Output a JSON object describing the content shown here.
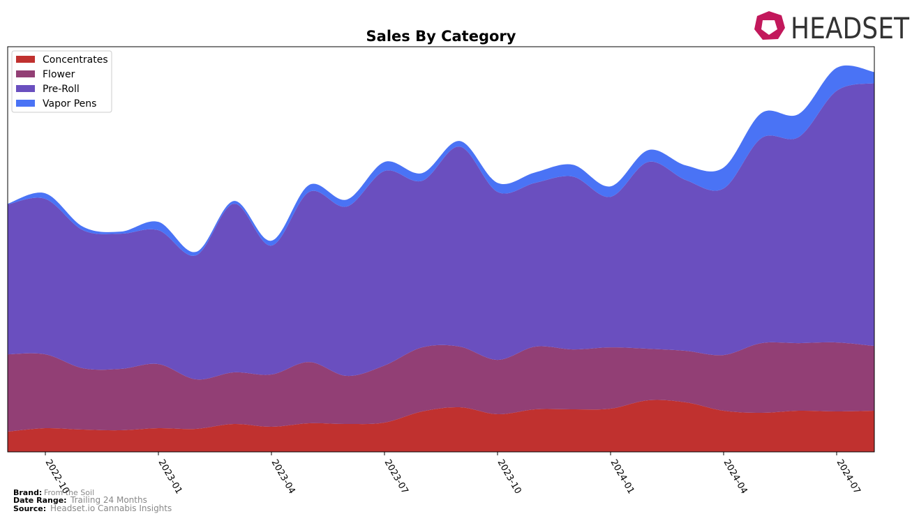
{
  "brand_logo": "HEADSET",
  "footer": {
    "brand_label": "Brand:",
    "brand": "From the Soil",
    "date_label": "Date Range:",
    "date": "Trailing 24 Months",
    "source_label": "Source:",
    "source": "Headset.io Cannabis Insights"
  },
  "chart_data": {
    "type": "stacked_area",
    "title": "Sales By Category",
    "x": [
      "2022-09",
      "2022-10",
      "2022-11",
      "2022-12",
      "2023-01",
      "2023-02",
      "2023-03",
      "2023-04",
      "2023-05",
      "2023-06",
      "2023-07",
      "2023-08",
      "2023-09",
      "2023-10",
      "2023-11",
      "2023-12",
      "2024-01",
      "2024-02",
      "2024-03",
      "2024-04",
      "2024-05",
      "2024-06",
      "2024-07",
      "2024-08"
    ],
    "xticks": [
      "2022-10",
      "2023-01",
      "2023-04",
      "2023-07",
      "2023-10",
      "2024-01",
      "2024-04",
      "2024-07"
    ],
    "legend": "upper left",
    "series": [
      {
        "name": "Concentrates",
        "color": "#c0312f",
        "values": [
          29,
          34,
          32,
          31,
          34,
          33,
          40,
          36,
          41,
          40,
          42,
          58,
          64,
          54,
          61,
          61,
          62,
          74,
          71,
          59,
          56,
          59,
          58,
          59
        ]
      },
      {
        "name": "Flower",
        "color": "#923f75",
        "values": [
          111,
          106,
          88,
          88,
          92,
          71,
          74,
          75,
          88,
          69,
          82,
          92,
          87,
          78,
          90,
          86,
          88,
          74,
          74,
          80,
          100,
          97,
          99,
          93
        ]
      },
      {
        "name": "Pre-Roll",
        "color": "#6a4fbf",
        "values": [
          215,
          223,
          198,
          194,
          192,
          178,
          242,
          185,
          244,
          243,
          279,
          239,
          287,
          241,
          235,
          248,
          216,
          268,
          245,
          239,
          294,
          296,
          361,
          377
        ]
      },
      {
        "name": "Vapor Pens",
        "color": "#4a73f5",
        "values": [
          1,
          8,
          5,
          3,
          12,
          5,
          4,
          7,
          10,
          10,
          13,
          11,
          8,
          13,
          15,
          17,
          15,
          17,
          21,
          30,
          36,
          33,
          33,
          16
        ]
      }
    ]
  }
}
